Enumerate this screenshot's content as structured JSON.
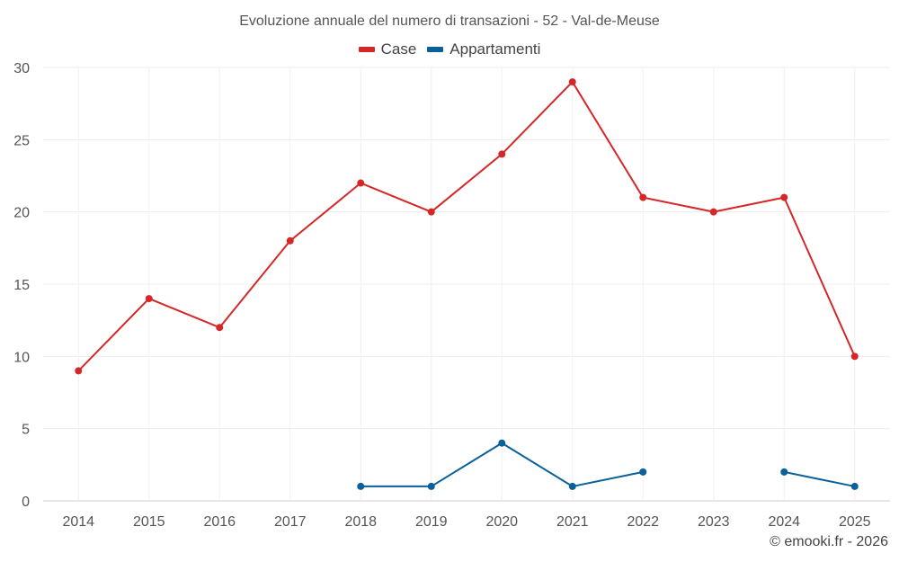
{
  "chart_data": {
    "type": "line",
    "title": "Evoluzione annuale del numero di transazioni - 52 - Val-de-Meuse",
    "categories": [
      "2014",
      "2015",
      "2016",
      "2017",
      "2018",
      "2019",
      "2020",
      "2021",
      "2022",
      "2023",
      "2024",
      "2025"
    ],
    "ylim": [
      0,
      30
    ],
    "yticks": [
      0,
      5,
      10,
      15,
      20,
      25,
      30
    ],
    "grid": true,
    "legend_position": "top-center",
    "series": [
      {
        "name": "Case",
        "color": "#d62728",
        "values": [
          9,
          14,
          12,
          18,
          22,
          20,
          24,
          29,
          21,
          20,
          21,
          10
        ]
      },
      {
        "name": "Appartamenti",
        "color": "#0a6199",
        "values": [
          null,
          null,
          null,
          null,
          1,
          1,
          4,
          1,
          2,
          null,
          2,
          1
        ]
      }
    ]
  },
  "credit": "© emooki.fr - 2026"
}
